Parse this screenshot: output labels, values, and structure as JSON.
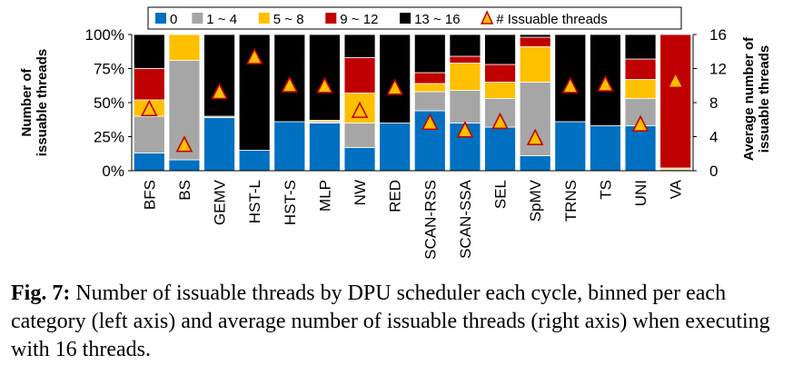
{
  "chart_data": {
    "type": "bar",
    "stacked": true,
    "categories": [
      "BFS",
      "BS",
      "GEMV",
      "HST-L",
      "HST-S",
      "MLP",
      "NW",
      "RED",
      "SCAN-RSS",
      "SCAN-SSA",
      "SEL",
      "SpMV",
      "TRNS",
      "TS",
      "UNI",
      "VA"
    ],
    "series": [
      {
        "name": "0",
        "color": "#0070c0",
        "values": [
          13,
          8,
          39,
          15,
          36,
          35,
          17,
          35,
          44,
          35,
          32,
          11,
          36,
          33,
          33,
          0
        ]
      },
      {
        "name": "1 ~ 4",
        "color": "#a6a6a6",
        "values": [
          27,
          73,
          1,
          0,
          0,
          1,
          18,
          0,
          14,
          24,
          21,
          54,
          0,
          0,
          20,
          1
        ]
      },
      {
        "name": "5 ~ 8",
        "color": "#ffc000",
        "values": [
          12,
          19,
          0,
          0,
          0,
          1,
          22,
          0,
          6,
          20,
          12,
          26,
          0,
          0,
          14,
          1
        ]
      },
      {
        "name": "9 ~ 12",
        "color": "#c00000",
        "values": [
          23,
          0,
          0,
          0,
          0,
          0,
          26,
          0,
          8,
          5,
          13,
          7,
          0,
          0,
          15,
          98
        ]
      },
      {
        "name": "13 ~ 16",
        "color": "#000000",
        "values": [
          25,
          0,
          60,
          85,
          64,
          63,
          17,
          65,
          28,
          16,
          22,
          2,
          64,
          67,
          18,
          0
        ]
      }
    ],
    "markers": {
      "name": "# Issuable threads",
      "values": [
        7.2,
        3.0,
        9.2,
        13.3,
        10.0,
        9.9,
        7.0,
        9.7,
        5.6,
        4.7,
        5.7,
        3.8,
        9.9,
        10.1,
        5.4,
        10.5
      ]
    },
    "ylabel_left": "Number of issuable threads",
    "ylabel_right": "Average number of issuable threads",
    "yticks_left": [
      "0%",
      "25%",
      "50%",
      "75%",
      "100%"
    ],
    "yticks_right": [
      "0",
      "4",
      "8",
      "12",
      "16"
    ],
    "ylim_left": [
      0,
      100
    ],
    "ylim_right": [
      0,
      16
    ],
    "legend_position": "top",
    "grid": false
  },
  "caption": {
    "label": "Fig. 7:",
    "text": " Number of issuable threads by DPU scheduler each cycle, binned per each category (left axis) and average number of issuable threads (right axis) when executing with 16 threads."
  }
}
